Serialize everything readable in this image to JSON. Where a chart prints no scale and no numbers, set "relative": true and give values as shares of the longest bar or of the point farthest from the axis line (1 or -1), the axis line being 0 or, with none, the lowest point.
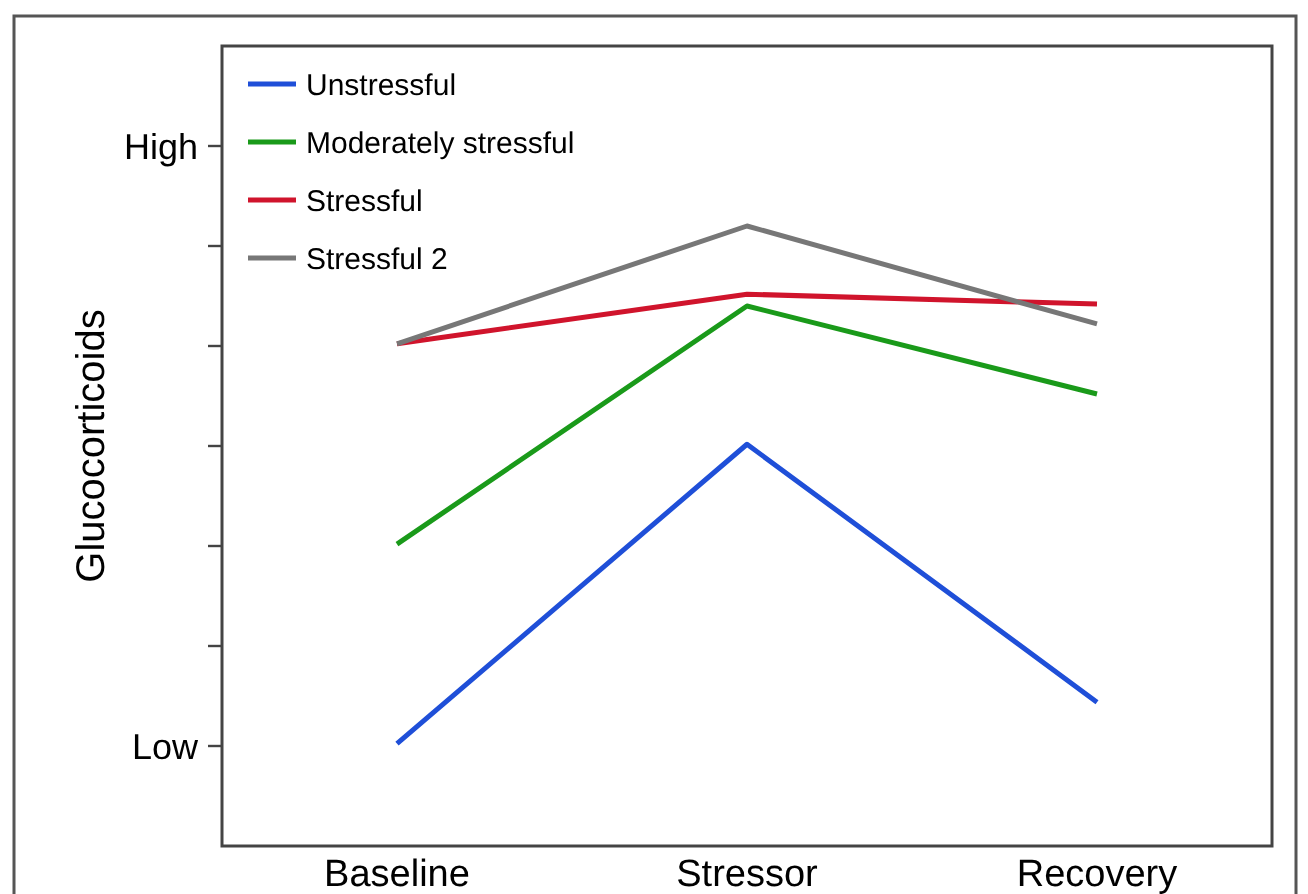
{
  "chart_data": {
    "type": "line",
    "relative": true,
    "ylabel": "Glucocorticoids",
    "categories": [
      "Baseline",
      "Stressor",
      "Recovery"
    ],
    "annotations": [
      "Low",
      "High"
    ],
    "series": [
      {
        "name": "Unstressful",
        "color": "#1f4fd8",
        "values": [
          0.165,
          0.648,
          0.232
        ]
      },
      {
        "name": "Moderately stressful",
        "color": "#1a9a1a",
        "values": [
          0.487,
          0.871,
          0.729
        ]
      },
      {
        "name": "Stressful",
        "color": "#d0142c",
        "values": [
          0.81,
          0.89,
          0.874
        ]
      },
      {
        "name": "Stressful 2",
        "color": "#777777",
        "values": [
          0.81,
          1,
          0.842
        ]
      }
    ],
    "legend": "top left",
    "marker": "none",
    "line_style": "solid"
  }
}
